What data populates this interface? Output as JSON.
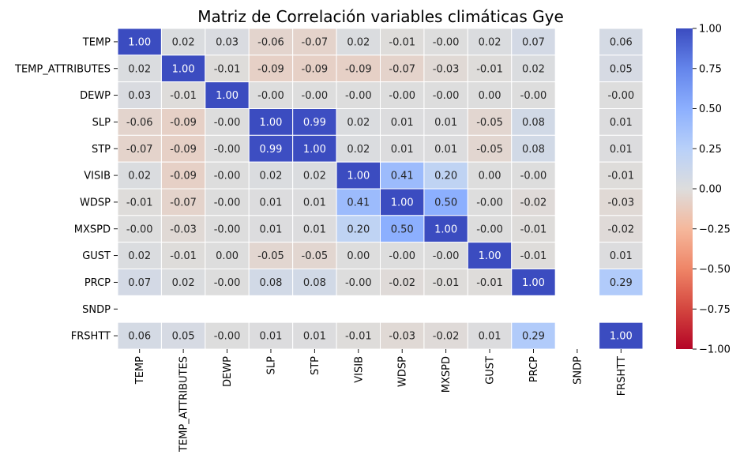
{
  "chart_data": {
    "type": "heatmap",
    "title": "Matriz de Correlación variables climáticas Gye",
    "xlabel": "",
    "ylabel": "",
    "labels": [
      "TEMP",
      "TEMP_ATTRIBUTES",
      "DEWP",
      "SLP",
      "STP",
      "VISIB",
      "WDSP",
      "MXSPD",
      "GUST",
      "PRCP",
      "SNDP",
      "FRSHTT"
    ],
    "matrix": [
      [
        1.0,
        0.02,
        0.03,
        -0.06,
        -0.07,
        0.02,
        -0.01,
        -0.0,
        0.02,
        0.07,
        null,
        0.06
      ],
      [
        0.02,
        1.0,
        -0.01,
        -0.09,
        -0.09,
        -0.09,
        -0.07,
        -0.03,
        -0.01,
        0.02,
        null,
        0.05
      ],
      [
        0.03,
        -0.01,
        1.0,
        -0.0,
        -0.0,
        -0.0,
        -0.0,
        -0.0,
        0.0,
        -0.0,
        null,
        -0.0
      ],
      [
        -0.06,
        -0.09,
        -0.0,
        1.0,
        0.99,
        0.02,
        0.01,
        0.01,
        -0.05,
        0.08,
        null,
        0.01
      ],
      [
        -0.07,
        -0.09,
        -0.0,
        0.99,
        1.0,
        0.02,
        0.01,
        0.01,
        -0.05,
        0.08,
        null,
        0.01
      ],
      [
        0.02,
        -0.09,
        -0.0,
        0.02,
        0.02,
        1.0,
        0.41,
        0.2,
        0.0,
        -0.0,
        null,
        -0.01
      ],
      [
        -0.01,
        -0.07,
        -0.0,
        0.01,
        0.01,
        0.41,
        1.0,
        0.5,
        -0.0,
        -0.02,
        null,
        -0.03
      ],
      [
        -0.0,
        -0.03,
        -0.0,
        0.01,
        0.01,
        0.2,
        0.5,
        1.0,
        -0.0,
        -0.01,
        null,
        -0.02
      ],
      [
        0.02,
        -0.01,
        0.0,
        -0.05,
        -0.05,
        0.0,
        -0.0,
        -0.0,
        1.0,
        -0.01,
        null,
        0.01
      ],
      [
        0.07,
        0.02,
        -0.0,
        0.08,
        0.08,
        -0.0,
        -0.02,
        -0.01,
        -0.01,
        1.0,
        null,
        0.29
      ],
      [
        null,
        null,
        null,
        null,
        null,
        null,
        null,
        null,
        null,
        null,
        null,
        null
      ],
      [
        0.06,
        0.05,
        -0.0,
        0.01,
        0.01,
        -0.01,
        -0.03,
        -0.02,
        0.01,
        0.29,
        null,
        1.0
      ]
    ],
    "value_format": "2 decimals",
    "colormap": "coolwarm",
    "vmin": -1.0,
    "vmax": 1.0,
    "colorbar_ticks": [
      "1.00",
      "0.75",
      "0.50",
      "0.25",
      "0.00",
      "−0.25",
      "−0.50",
      "−0.75",
      "−1.00"
    ],
    "colorbar_tick_values": [
      1.0,
      0.75,
      0.5,
      0.25,
      0.0,
      -0.25,
      -0.5,
      -0.75,
      -1.0
    ],
    "cell_border_color": "#ffffff",
    "grid": false,
    "legend": "colorbar right"
  }
}
